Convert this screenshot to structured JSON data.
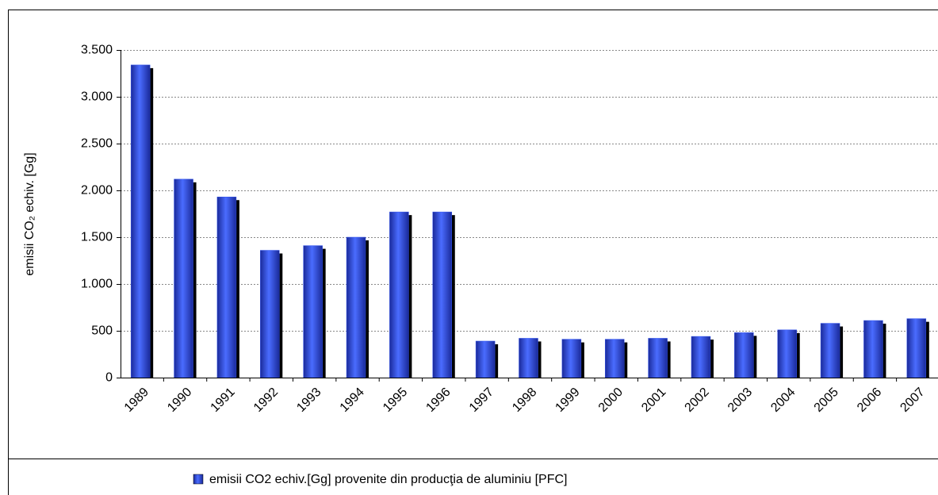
{
  "chart_data": {
    "type": "bar",
    "ylabel": "emisii CO₂ echiv. [Gg]",
    "categories": [
      "1989",
      "1990",
      "1991",
      "1992",
      "1993",
      "1994",
      "1995",
      "1996",
      "1997",
      "1998",
      "1999",
      "2000",
      "2001",
      "2002",
      "2003",
      "2004",
      "2005",
      "2006",
      "2007"
    ],
    "series": [
      {
        "name": "emisii CO2 echiv.[Gg] provenite din producţia de aluminiu [PFC]",
        "color": "#3355ee",
        "values": [
          3340,
          2120,
          1930,
          1360,
          1410,
          1500,
          1770,
          1770,
          390,
          420,
          410,
          410,
          420,
          440,
          480,
          510,
          580,
          610,
          630
        ]
      }
    ],
    "ylim": [
      0,
      3500
    ],
    "yticks": [
      0,
      {
        "value": 500,
        "label": "500"
      },
      {
        "value": 1000,
        "label": "1.000"
      },
      {
        "value": 1500,
        "label": "1.500"
      },
      {
        "value": 2000,
        "label": "2.000"
      },
      {
        "value": 2500,
        "label": "2.500"
      },
      {
        "value": 3000,
        "label": "3.000"
      },
      {
        "value": 3500,
        "label": "3.500"
      }
    ],
    "grid": true
  }
}
